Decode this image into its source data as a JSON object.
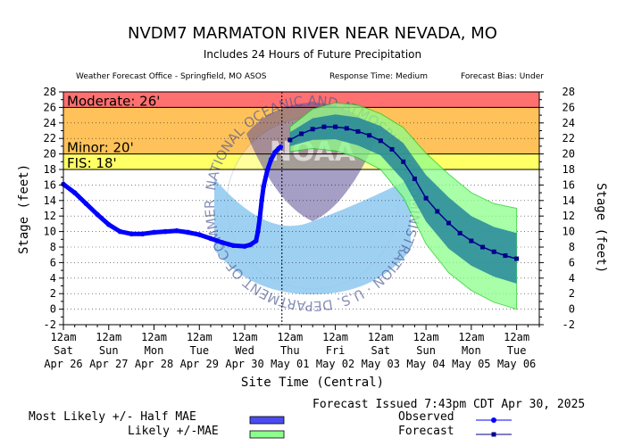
{
  "header": {
    "title": "NVDM7 MARMATON RIVER NEAR NEVADA, MO",
    "subtitle": "Includes  24 Hours of Future Precipitation",
    "office": "Weather Forecast Office - Springfield, MO ASOS",
    "response_time": "Response Time: Medium",
    "forecast_bias": "Forecast Bias:  Under"
  },
  "footer": {
    "issued": "Forecast Issued 7:43pm CDT Apr 30, 2025",
    "legend_most_likely": "Most Likely +/- Half MAE",
    "legend_likely": "Likely +/-MAE",
    "legend_observed": "Observed",
    "legend_forecast": "Forecast"
  },
  "watermark": {
    "logo_text": "NOAA",
    "ring_text": "NATIONAL OCEANIC AND ATMOSPHERIC ADMINISTRATION · U.S. DEPARTMENT OF COMMERCE"
  },
  "colors": {
    "moderate": "#ff7070",
    "minor": "#ffc25a",
    "action": "#ffff66",
    "observed": "#0000ff",
    "forecast": "#00008b",
    "most_likely_band": "#1e7f9a",
    "likely_band": "#8cff8c",
    "likely_edge": "#1fcc1f"
  },
  "chart_data": {
    "type": "line",
    "xlabel": "Site Time (Central)",
    "ylabel": "Stage (feet)",
    "ylim": [
      -2,
      28
    ],
    "yticks": [
      "-2",
      "0",
      "2",
      "4",
      "6",
      "8",
      "10",
      "12",
      "14",
      "16",
      "18",
      "20",
      "22",
      "24",
      "26",
      "28"
    ],
    "xlim": [
      "2025-04-26 00:00",
      "2025-05-06 12:00"
    ],
    "xticks": [
      {
        "time": "12am",
        "day": "Sat",
        "date": "Apr 26"
      },
      {
        "time": "12am",
        "day": "Sun",
        "date": "Apr 27"
      },
      {
        "time": "12am",
        "day": "Mon",
        "date": "Apr 28"
      },
      {
        "time": "12am",
        "day": "Tue",
        "date": "Apr 29"
      },
      {
        "time": "12am",
        "day": "Wed",
        "date": "Apr 30"
      },
      {
        "time": "12am",
        "day": "Thu",
        "date": "May 01"
      },
      {
        "time": "12am",
        "day": "Fri",
        "date": "May 02"
      },
      {
        "time": "12am",
        "day": "Sat",
        "date": "May 03"
      },
      {
        "time": "12am",
        "day": "Sun",
        "date": "May 04"
      },
      {
        "time": "12am",
        "day": "Mon",
        "date": "May 05"
      },
      {
        "time": "12am",
        "day": "Tue",
        "date": "May 06"
      }
    ],
    "flood_categories": [
      {
        "label": "Moderate: 26'",
        "from": 26,
        "to": 28
      },
      {
        "label": "Minor: 20'",
        "from": 20,
        "to": 26
      },
      {
        "label": "FIS: 18'",
        "from": 18,
        "to": 20
      }
    ],
    "issued_time": "2025-04-30 19:43",
    "observed": [
      [
        "2025-04-26 00:00",
        16.1
      ],
      [
        "2025-04-26 06:00",
        15.0
      ],
      [
        "2025-04-26 12:00",
        13.6
      ],
      [
        "2025-04-26 18:00",
        12.2
      ],
      [
        "2025-04-27 00:00",
        10.9
      ],
      [
        "2025-04-27 06:00",
        10.0
      ],
      [
        "2025-04-27 12:00",
        9.7
      ],
      [
        "2025-04-27 18:00",
        9.7
      ],
      [
        "2025-04-28 00:00",
        9.9
      ],
      [
        "2025-04-28 06:00",
        10.0
      ],
      [
        "2025-04-28 12:00",
        10.1
      ],
      [
        "2025-04-28 18:00",
        9.9
      ],
      [
        "2025-04-29 00:00",
        9.6
      ],
      [
        "2025-04-29 06:00",
        9.1
      ],
      [
        "2025-04-29 12:00",
        8.6
      ],
      [
        "2025-04-29 18:00",
        8.2
      ],
      [
        "2025-04-30 00:00",
        8.1
      ],
      [
        "2025-04-30 03:00",
        8.3
      ],
      [
        "2025-04-30 06:00",
        8.8
      ],
      [
        "2025-04-30 07:00",
        10.0
      ],
      [
        "2025-04-30 08:00",
        11.8
      ],
      [
        "2025-04-30 09:00",
        14.0
      ],
      [
        "2025-04-30 10:00",
        15.8
      ],
      [
        "2025-04-30 12:00",
        17.9
      ],
      [
        "2025-04-30 14:00",
        19.3
      ],
      [
        "2025-04-30 16:00",
        20.2
      ],
      [
        "2025-04-30 18:00",
        20.7
      ],
      [
        "2025-04-30 19:00",
        20.9
      ]
    ],
    "forecast": [
      [
        "2025-05-01 00:00",
        21.8
      ],
      [
        "2025-05-01 06:00",
        22.6
      ],
      [
        "2025-05-01 12:00",
        23.2
      ],
      [
        "2025-05-01 18:00",
        23.5
      ],
      [
        "2025-05-02 00:00",
        23.5
      ],
      [
        "2025-05-02 06:00",
        23.3
      ],
      [
        "2025-05-02 12:00",
        22.9
      ],
      [
        "2025-05-02 18:00",
        22.4
      ],
      [
        "2025-05-03 00:00",
        21.7
      ],
      [
        "2025-05-03 06:00",
        20.6
      ],
      [
        "2025-05-03 12:00",
        19.0
      ],
      [
        "2025-05-03 18:00",
        16.8
      ],
      [
        "2025-05-04 00:00",
        14.3
      ],
      [
        "2025-05-04 06:00",
        12.6
      ],
      [
        "2025-05-04 12:00",
        11.1
      ],
      [
        "2025-05-04 18:00",
        9.8
      ],
      [
        "2025-05-05 00:00",
        8.8
      ],
      [
        "2025-05-05 06:00",
        8.0
      ],
      [
        "2025-05-05 12:00",
        7.4
      ],
      [
        "2025-05-05 18:00",
        6.9
      ],
      [
        "2025-05-06 00:00",
        6.5
      ]
    ],
    "most_likely_band": {
      "upper": [
        [
          "2025-05-01 00:00",
          22.8
        ],
        [
          "2025-05-01 12:00",
          24.6
        ],
        [
          "2025-05-02 00:00",
          25.1
        ],
        [
          "2025-05-02 12:00",
          24.7
        ],
        [
          "2025-05-03 00:00",
          23.6
        ],
        [
          "2025-05-03 12:00",
          21.4
        ],
        [
          "2025-05-04 00:00",
          17.3
        ],
        [
          "2025-05-04 12:00",
          14.4
        ],
        [
          "2025-05-05 00:00",
          12.0
        ],
        [
          "2025-05-05 12:00",
          10.6
        ],
        [
          "2025-05-06 00:00",
          9.8
        ]
      ],
      "lower": [
        [
          "2025-05-01 00:00",
          21.0
        ],
        [
          "2025-05-01 12:00",
          21.8
        ],
        [
          "2025-05-02 00:00",
          21.9
        ],
        [
          "2025-05-02 12:00",
          21.1
        ],
        [
          "2025-05-03 00:00",
          19.8
        ],
        [
          "2025-05-03 12:00",
          16.6
        ],
        [
          "2025-05-04 00:00",
          11.3
        ],
        [
          "2025-05-04 12:00",
          7.8
        ],
        [
          "2025-05-05 00:00",
          5.6
        ],
        [
          "2025-05-05 12:00",
          4.2
        ],
        [
          "2025-05-06 00:00",
          3.3
        ]
      ]
    },
    "likely_band": {
      "upper": [
        [
          "2025-05-01 00:00",
          23.5
        ],
        [
          "2025-05-01 12:00",
          25.8
        ],
        [
          "2025-05-02 00:00",
          26.6
        ],
        [
          "2025-05-02 12:00",
          26.3
        ],
        [
          "2025-05-03 00:00",
          25.2
        ],
        [
          "2025-05-03 12:00",
          23.4
        ],
        [
          "2025-05-04 00:00",
          20.1
        ],
        [
          "2025-05-04 12:00",
          17.4
        ],
        [
          "2025-05-05 00:00",
          15.0
        ],
        [
          "2025-05-05 12:00",
          13.6
        ],
        [
          "2025-05-06 00:00",
          13.0
        ]
      ],
      "lower": [
        [
          "2025-05-01 00:00",
          20.3
        ],
        [
          "2025-05-01 12:00",
          20.7
        ],
        [
          "2025-05-02 00:00",
          20.4
        ],
        [
          "2025-05-02 12:00",
          19.5
        ],
        [
          "2025-05-03 00:00",
          18.0
        ],
        [
          "2025-05-03 12:00",
          14.4
        ],
        [
          "2025-05-04 00:00",
          8.4
        ],
        [
          "2025-05-04 12:00",
          4.7
        ],
        [
          "2025-05-05 00:00",
          2.4
        ],
        [
          "2025-05-05 12:00",
          0.9
        ],
        [
          "2025-05-06 00:00",
          0.0
        ]
      ]
    }
  }
}
